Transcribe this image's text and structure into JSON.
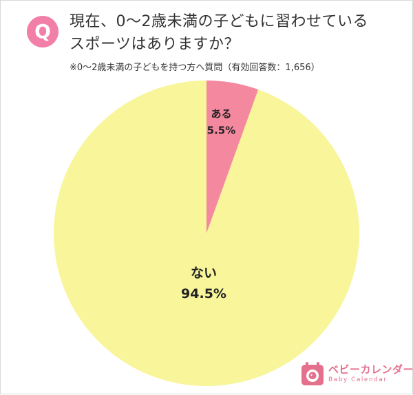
{
  "header": {
    "badge": "Q",
    "title_line1": "現在、0〜2歳未満の子どもに習わせている",
    "title_line2": "スポーツはありますか？",
    "subtitle": "※0〜2歳未満の子どもを持つ方へ質問（有効回答数：1,656）"
  },
  "chart_data": {
    "type": "pie",
    "title": "現在、0〜2歳未満の子どもに習わせているスポーツはありますか？",
    "labels": [
      "ある",
      "ない"
    ],
    "values": [
      5.5,
      94.5
    ],
    "value_labels": [
      "5.5%",
      "94.5%"
    ],
    "colors": [
      "#f4889f",
      "#f8f59a"
    ],
    "start": "12 o'clock, clockwise",
    "legend": "none (labels inside slices)"
  },
  "logo": {
    "name_ja": "ベビーカレンダー",
    "name_en": "Baby Calendar",
    "color": "#e5708e"
  }
}
